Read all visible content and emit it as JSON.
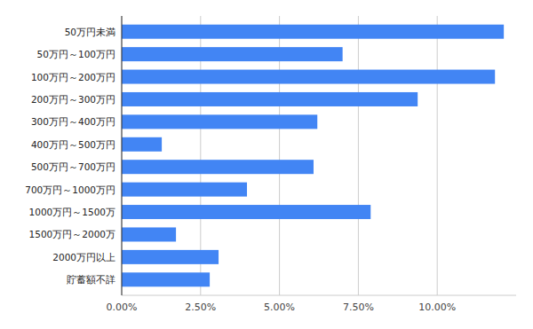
{
  "chart_data": {
    "type": "bar",
    "orientation": "horizontal",
    "categories": [
      "50万円未満",
      "50万円～100万円",
      "100万円～200万円",
      "200万円～300万円",
      "300万円～400万円",
      "400万円～500万円",
      "500万円～700万円",
      "700万円～1000万円",
      "1000万円～1500万",
      "1500万円～2000万",
      "2000万円以上",
      "貯蓄額不詳"
    ],
    "values": [
      12.11,
      7.0,
      11.83,
      9.38,
      6.2,
      1.27,
      6.08,
      3.97,
      7.89,
      1.72,
      3.07,
      2.79
    ],
    "color": "#4285f4",
    "xlim": [
      0,
      12.5
    ],
    "xticks": [
      {
        "value": 0,
        "label": "0.00%"
      },
      {
        "value": 2.5,
        "label": "2.50%"
      },
      {
        "value": 5,
        "label": "5.00%"
      },
      {
        "value": 7.5,
        "label": "7.50%"
      },
      {
        "value": 10,
        "label": "10.00%"
      }
    ],
    "grid": true
  }
}
